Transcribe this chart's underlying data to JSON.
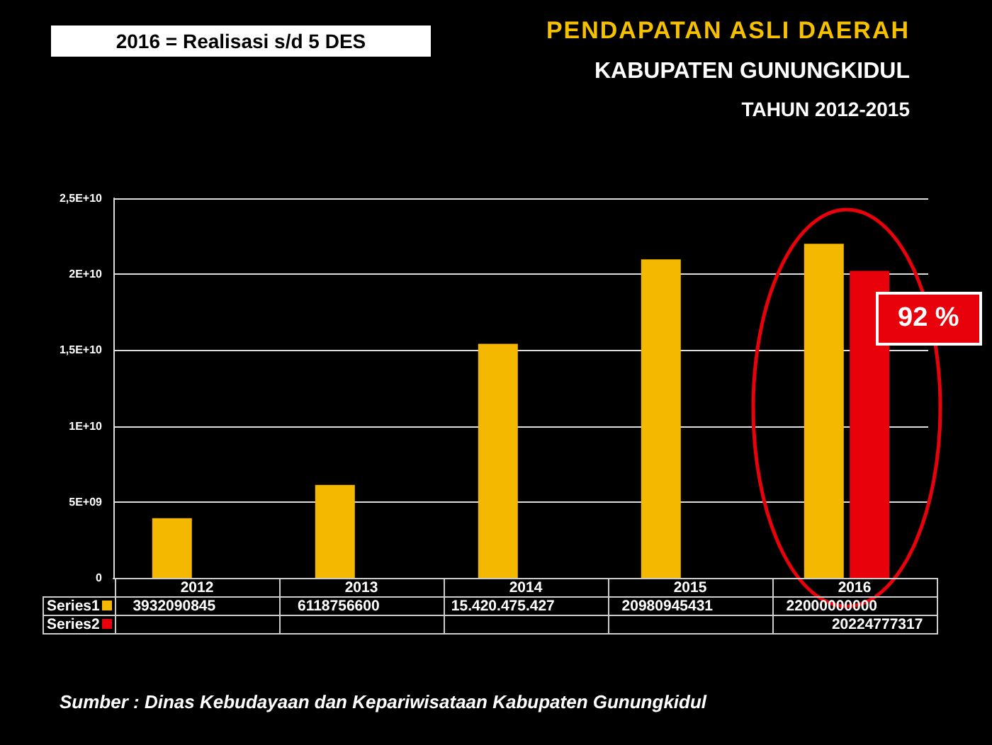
{
  "chart_data": {
    "type": "bar",
    "title": "PENDAPATAN ASLI DAERAH",
    "subtitle": "KABUPATEN GUNUNGKIDUL\nTAHUN 2012-2015",
    "categories": [
      "2012",
      "2013",
      "2014",
      "2015",
      "2016"
    ],
    "series": [
      {
        "name": "Series1",
        "color": "#f5b800",
        "values": [
          3932090845,
          6118756600,
          15420475427,
          20980945431,
          22000000000
        ],
        "value_labels": [
          "3932090845",
          "6118756600",
          "15.420.475.427",
          "20980945431",
          "22000000000"
        ]
      },
      {
        "name": "Series2",
        "color": "#e8000b",
        "values": [
          null,
          null,
          null,
          null,
          20224777317
        ],
        "value_labels": [
          null,
          null,
          null,
          null,
          "20224777317"
        ]
      }
    ],
    "ylim": [
      0,
      25000000000
    ],
    "yticks": [
      {
        "value": 0,
        "label": "0"
      },
      {
        "value": 5000000000,
        "label": "5E+09"
      },
      {
        "value": 10000000000,
        "label": "1E+10"
      },
      {
        "value": 15000000000,
        "label": "1,5E+10"
      },
      {
        "value": 20000000000,
        "label": "2E+10"
      },
      {
        "value": 25000000000,
        "label": "2,5E+10"
      }
    ],
    "grid": "y",
    "legend": "bottom left",
    "annotations": [
      "2016 = Realisasi s/d 5 DES",
      "92 %",
      "Sumber : Dinas Kebudayaan dan Kepariwisataan Kabupaten Gunungkidul"
    ]
  }
}
